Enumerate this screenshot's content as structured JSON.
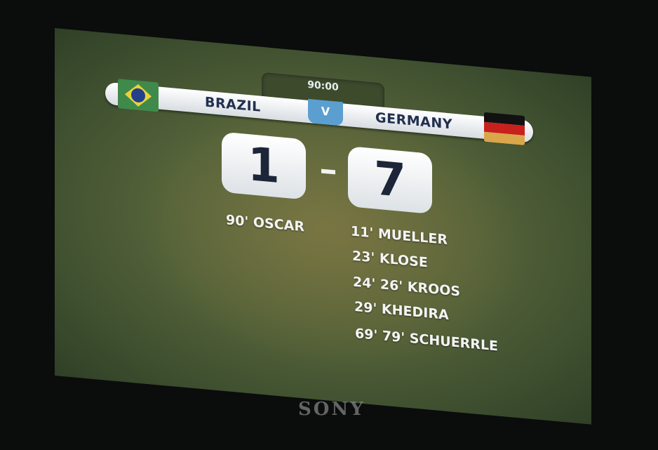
{
  "scoreboard": {
    "clock": "90:00",
    "home_team": "BRAZIL",
    "away_team": "GERMANY",
    "versus": "V",
    "home_score": "1",
    "away_score": "7",
    "home_goals": [
      "90' OSCAR"
    ],
    "away_goals": [
      "11' MUELLER",
      "23' KLOSE",
      "24' 26' KROOS",
      "29' KHEDIRA",
      "69' 79' SCHUERRLE"
    ]
  },
  "brand": "SONY",
  "colors": {
    "bar": "#ffffff",
    "versus_badge": "#5a9fd0",
    "team_text": "#22304f",
    "screen": "#56643a"
  }
}
